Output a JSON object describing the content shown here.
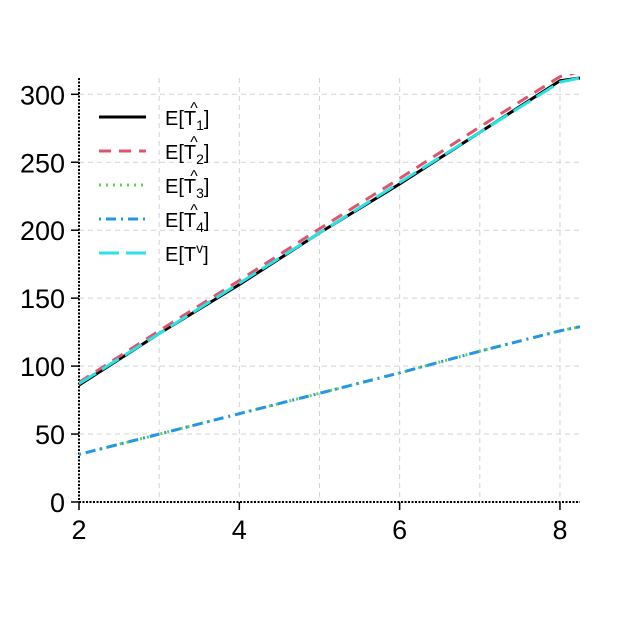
{
  "chart_data": {
    "type": "line",
    "title": "",
    "xlabel": "",
    "ylabel": "",
    "xlim": [
      2,
      8.25
    ],
    "ylim": [
      0,
      312
    ],
    "xticks": [
      2,
      4,
      6,
      8
    ],
    "yticks": [
      0,
      50,
      100,
      150,
      200,
      250,
      300
    ],
    "grid": true,
    "legend_position": "top-left",
    "series": [
      {
        "name": "E[T̂1]",
        "legend": {
          "base": "E[T",
          "accent": "^",
          "sub": "1",
          "close": "]"
        },
        "color": "#000000",
        "dash": "solid",
        "x": [
          2,
          3,
          4,
          5,
          6,
          7,
          8,
          8.25
        ],
        "y": [
          86,
          124,
          160,
          198,
          234,
          272,
          310,
          312
        ]
      },
      {
        "name": "E[T̂2]",
        "legend": {
          "base": "E[T",
          "accent": "^",
          "sub": "2",
          "close": "]"
        },
        "color": "#DF536B",
        "dash": "dashed",
        "x": [
          2,
          3,
          4,
          5,
          6,
          7,
          8,
          8.2
        ],
        "y": [
          88,
          126,
          163,
          201,
          238,
          276,
          313,
          316
        ]
      },
      {
        "name": "E[T̂3]",
        "legend": {
          "base": "E[T",
          "accent": "^",
          "sub": "3",
          "close": "]"
        },
        "color": "#61D04F",
        "dash": "dotted",
        "x": [
          2,
          3,
          4,
          5,
          6,
          7,
          8,
          8.25
        ],
        "y": [
          35,
          50,
          65,
          80,
          95,
          111,
          126,
          129
        ]
      },
      {
        "name": "E[T̂4]",
        "legend": {
          "base": "E[T",
          "accent": "^",
          "sub": "4",
          "close": "]"
        },
        "color": "#2297E6",
        "dash": "dotdash",
        "x": [
          2,
          3,
          4,
          5,
          6,
          7,
          8,
          8.25
        ],
        "y": [
          35,
          50,
          65,
          80,
          95,
          111,
          126,
          129
        ]
      },
      {
        "name": "E[Tv]",
        "legend": {
          "base": "E[T",
          "accent": "",
          "sub": "",
          "sup": "v",
          "close": "]"
        },
        "color": "#28E2E5",
        "dash": "longdash",
        "x": [
          2,
          3,
          4,
          5,
          6,
          7,
          8,
          8.25
        ],
        "y": [
          87,
          124,
          161,
          198,
          235,
          272,
          309,
          312
        ]
      }
    ]
  }
}
